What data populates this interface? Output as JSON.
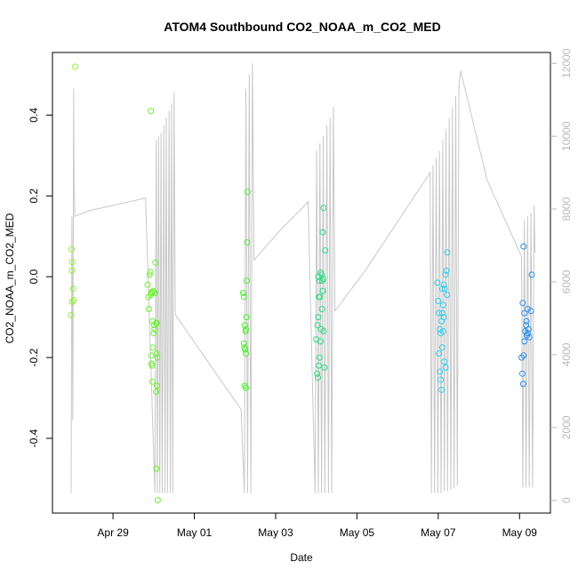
{
  "chart_data": {
    "type": "scatter",
    "title": "ATOM4 Southbound CO2_NOAA_m_CO2_MED",
    "xlabel": "Date",
    "ylabel": "CO2_NOAA_m_CO2_MED",
    "x_unit": "days since Apr 27 00:00",
    "xlim": [
      0.51,
      12.76
    ],
    "ylim": [
      -0.585,
      0.555
    ],
    "x_ticks": [
      {
        "value": 2,
        "label": "Apr 29"
      },
      {
        "value": 4,
        "label": "May 01"
      },
      {
        "value": 6,
        "label": "May 03"
      },
      {
        "value": 8,
        "label": "May 05"
      },
      {
        "value": 10,
        "label": "May 07"
      },
      {
        "value": 12,
        "label": "May 09"
      }
    ],
    "y_ticks": [
      {
        "value": -0.4,
        "label": "-0.4"
      },
      {
        "value": -0.2,
        "label": "-0.2"
      },
      {
        "value": 0.0,
        "label": "0.0"
      },
      {
        "value": 0.2,
        "label": "0.2"
      },
      {
        "value": 0.4,
        "label": "0.4"
      }
    ],
    "secondary_axis": {
      "label": "",
      "color": "#b8b8b8",
      "ylim": [
        -350,
        12300
      ],
      "ticks": [
        {
          "value": 0,
          "label": "0"
        },
        {
          "value": 2000,
          "label": "2000"
        },
        {
          "value": 4000,
          "label": "4000"
        },
        {
          "value": 6000,
          "label": "6000"
        },
        {
          "value": 8000,
          "label": "8000"
        },
        {
          "value": 10000,
          "label": "10000"
        },
        {
          "value": 12000,
          "label": "12000"
        }
      ]
    },
    "altitude_trace": {
      "name": "altitude",
      "color": "#c8c8c8",
      "points": [
        [
          0.97,
          200
        ],
        [
          0.99,
          7800
        ],
        [
          1.01,
          2200
        ],
        [
          1.03,
          11300
        ],
        [
          1.04,
          9000
        ],
        [
          1.06,
          7800
        ],
        [
          1.4,
          7950
        ],
        [
          2.8,
          8300
        ],
        [
          3.03,
          200
        ],
        [
          3.06,
          9900
        ],
        [
          3.09,
          200
        ],
        [
          3.12,
          10000
        ],
        [
          3.15,
          200
        ],
        [
          3.18,
          10100
        ],
        [
          3.21,
          200
        ],
        [
          3.25,
          10300
        ],
        [
          3.28,
          200
        ],
        [
          3.31,
          10500
        ],
        [
          3.34,
          200
        ],
        [
          3.38,
          10700
        ],
        [
          3.41,
          200
        ],
        [
          3.44,
          10900
        ],
        [
          3.47,
          200
        ],
        [
          3.5,
          11200
        ],
        [
          3.53,
          5100
        ],
        [
          4.4,
          3700
        ],
        [
          5.15,
          2500
        ],
        [
          5.23,
          200
        ],
        [
          5.27,
          11300
        ],
        [
          5.31,
          200
        ],
        [
          5.35,
          11700
        ],
        [
          5.39,
          200
        ],
        [
          5.43,
          12000
        ],
        [
          5.47,
          6600
        ],
        [
          6.1,
          7400
        ],
        [
          6.8,
          8200
        ],
        [
          6.97,
          200
        ],
        [
          7.01,
          9600
        ],
        [
          7.05,
          200
        ],
        [
          7.09,
          9800
        ],
        [
          7.13,
          200
        ],
        [
          7.17,
          10000
        ],
        [
          7.21,
          200
        ],
        [
          7.26,
          10300
        ],
        [
          7.3,
          200
        ],
        [
          7.34,
          10500
        ],
        [
          7.38,
          200
        ],
        [
          7.42,
          10800
        ],
        [
          7.46,
          5200
        ],
        [
          8.2,
          6300
        ],
        [
          9.8,
          9000
        ],
        [
          9.83,
          200
        ],
        [
          9.87,
          9200
        ],
        [
          9.91,
          200
        ],
        [
          9.95,
          9400
        ],
        [
          9.99,
          200
        ],
        [
          10.03,
          9600
        ],
        [
          10.07,
          200
        ],
        [
          10.11,
          9900
        ],
        [
          10.15,
          250
        ],
        [
          10.19,
          10200
        ],
        [
          10.23,
          250
        ],
        [
          10.27,
          10500
        ],
        [
          10.31,
          300
        ],
        [
          10.35,
          10800
        ],
        [
          10.39,
          350
        ],
        [
          10.43,
          11100
        ],
        [
          10.47,
          400
        ],
        [
          10.51,
          11400
        ],
        [
          10.55,
          11800
        ],
        [
          11.2,
          8800
        ],
        [
          12.05,
          6700
        ],
        [
          12.08,
          350
        ],
        [
          12.12,
          7700
        ],
        [
          12.16,
          350
        ],
        [
          12.2,
          7800
        ],
        [
          12.24,
          350
        ],
        [
          12.28,
          7900
        ],
        [
          12.32,
          350
        ],
        [
          12.36,
          8100
        ],
        [
          12.38,
          6800
        ]
      ]
    },
    "series": [
      {
        "name": "CO2_NOAA_m_CO2_MED",
        "points": [
          [
            0.97,
            -0.095,
            "#8ef22e"
          ],
          [
            0.98,
            0.068,
            "#8ef22e"
          ],
          [
            1.0,
            0.036,
            "#8ef22e"
          ],
          [
            0.99,
            0.015,
            "#8ef22e"
          ],
          [
            1.02,
            -0.03,
            "#8ef22e"
          ],
          [
            1.0,
            -0.062,
            "#8ef22e"
          ],
          [
            1.03,
            -0.058,
            "#8ef22e"
          ],
          [
            1.07,
            0.52,
            "#8ef22e"
          ],
          [
            2.85,
            -0.02,
            "#6af02c"
          ],
          [
            2.87,
            -0.05,
            "#6af02c"
          ],
          [
            2.88,
            -0.08,
            "#6af02c"
          ],
          [
            2.9,
            0.005,
            "#6af02c"
          ],
          [
            2.92,
            0.012,
            "#6af02c"
          ],
          [
            2.93,
            -0.045,
            "#6af02c"
          ],
          [
            2.95,
            -0.038,
            "#6af02c"
          ],
          [
            2.96,
            -0.04,
            "#6af02c"
          ],
          [
            2.97,
            -0.11,
            "#6af02c"
          ],
          [
            2.98,
            -0.175,
            "#6af02c"
          ],
          [
            2.99,
            -0.035,
            "#6af02c"
          ],
          [
            3.0,
            -0.14,
            "#6af02c"
          ],
          [
            3.01,
            -0.12,
            "#6af02c"
          ],
          [
            3.02,
            -0.13,
            "#6af02c"
          ],
          [
            3.03,
            -0.04,
            "#6af02c"
          ],
          [
            3.04,
            0.035,
            "#6af02c"
          ],
          [
            3.06,
            -0.115,
            "#6af02c"
          ],
          [
            3.08,
            -0.115,
            "#6af02c"
          ],
          [
            2.94,
            -0.195,
            "#6af02c"
          ],
          [
            2.95,
            -0.215,
            "#6af02c"
          ],
          [
            2.96,
            -0.22,
            "#6af02c"
          ],
          [
            2.97,
            -0.26,
            "#6af02c"
          ],
          [
            3.07,
            -0.19,
            "#6af02c"
          ],
          [
            3.09,
            -0.2,
            "#6af02c"
          ],
          [
            3.08,
            -0.27,
            "#6af02c"
          ],
          [
            3.06,
            -0.285,
            "#6af02c"
          ],
          [
            3.07,
            -0.475,
            "#6af02c"
          ],
          [
            3.1,
            -0.553,
            "#6af02c"
          ],
          [
            2.93,
            0.41,
            "#6af02c"
          ],
          [
            5.2,
            -0.04,
            "#4ded30"
          ],
          [
            5.22,
            -0.05,
            "#4ded30"
          ],
          [
            5.24,
            -0.12,
            "#4ded30"
          ],
          [
            5.26,
            -0.135,
            "#4ded30"
          ],
          [
            5.27,
            -0.13,
            "#4ded30"
          ],
          [
            5.28,
            -0.1,
            "#4ded30"
          ],
          [
            5.29,
            -0.01,
            "#4ded30"
          ],
          [
            5.22,
            -0.165,
            "#4ded30"
          ],
          [
            5.23,
            -0.175,
            "#4ded30"
          ],
          [
            5.25,
            -0.18,
            "#4ded30"
          ],
          [
            5.27,
            -0.19,
            "#4ded30"
          ],
          [
            5.24,
            -0.27,
            "#4ded30"
          ],
          [
            5.27,
            -0.275,
            "#4ded30"
          ],
          [
            5.3,
            0.085,
            "#4ded30"
          ],
          [
            5.31,
            0.21,
            "#4ded30"
          ],
          [
            7.0,
            -0.155,
            "#2bdb84"
          ],
          [
            7.02,
            -0.24,
            "#2bdb84"
          ],
          [
            7.04,
            -0.25,
            "#2bdb84"
          ],
          [
            7.06,
            -0.22,
            "#2bdb84"
          ],
          [
            7.08,
            -0.2,
            "#2bdb84"
          ],
          [
            7.1,
            -0.16,
            "#2bdb84"
          ],
          [
            7.03,
            -0.12,
            "#2bdb84"
          ],
          [
            7.05,
            -0.1,
            "#2bdb84"
          ],
          [
            7.07,
            -0.05,
            "#2bdb84"
          ],
          [
            7.09,
            -0.05,
            "#2bdb84"
          ],
          [
            7.12,
            -0.13,
            "#2bdb84"
          ],
          [
            7.14,
            -0.08,
            "#2bdb84"
          ],
          [
            7.16,
            -0.035,
            "#2bdb84"
          ],
          [
            7.18,
            -0.135,
            "#2bdb84"
          ],
          [
            7.05,
            0.0,
            "#2bdb84"
          ],
          [
            7.08,
            -0.01,
            "#2bdb84"
          ],
          [
            7.11,
            0.01,
            "#2bdb84"
          ],
          [
            7.13,
            0.005,
            "#2bdb84"
          ],
          [
            7.15,
            -0.01,
            "#2bdb84"
          ],
          [
            7.17,
            -0.005,
            "#2bdb84"
          ],
          [
            7.2,
            -0.225,
            "#2bdb84"
          ],
          [
            7.16,
            0.11,
            "#2bdb84"
          ],
          [
            7.18,
            0.17,
            "#2bdb84"
          ],
          [
            7.22,
            0.065,
            "#2bdb84"
          ],
          [
            9.98,
            -0.015,
            "#33ccee"
          ],
          [
            10.0,
            -0.06,
            "#33ccee"
          ],
          [
            10.02,
            -0.09,
            "#33ccee"
          ],
          [
            10.04,
            -0.13,
            "#33ccee"
          ],
          [
            10.06,
            -0.14,
            "#33ccee"
          ],
          [
            10.08,
            -0.11,
            "#33ccee"
          ],
          [
            10.1,
            -0.09,
            "#33ccee"
          ],
          [
            10.12,
            -0.07,
            "#33ccee"
          ],
          [
            10.14,
            -0.02,
            "#33ccee"
          ],
          [
            10.16,
            -0.03,
            "#33ccee"
          ],
          [
            10.18,
            0.005,
            "#33ccee"
          ],
          [
            10.2,
            0.015,
            "#33ccee"
          ],
          [
            10.22,
            -0.045,
            "#33ccee"
          ],
          [
            10.02,
            -0.19,
            "#33ccee"
          ],
          [
            10.04,
            -0.235,
            "#33ccee"
          ],
          [
            10.06,
            -0.255,
            "#33ccee"
          ],
          [
            10.08,
            -0.28,
            "#33ccee"
          ],
          [
            10.1,
            -0.175,
            "#33ccee"
          ],
          [
            10.12,
            -0.135,
            "#33ccee"
          ],
          [
            10.15,
            -0.21,
            "#33ccee"
          ],
          [
            10.18,
            -0.225,
            "#33ccee"
          ],
          [
            10.22,
            0.06,
            "#33ccee"
          ],
          [
            10.1,
            -0.03,
            "#33ccee"
          ],
          [
            10.14,
            -0.1,
            "#33ccee"
          ],
          [
            12.05,
            -0.2,
            "#2a8ee8"
          ],
          [
            12.07,
            -0.24,
            "#2a8ee8"
          ],
          [
            12.09,
            -0.265,
            "#2a8ee8"
          ],
          [
            12.1,
            -0.195,
            "#2a8ee8"
          ],
          [
            12.12,
            -0.16,
            "#2a8ee8"
          ],
          [
            12.14,
            -0.135,
            "#2a8ee8"
          ],
          [
            12.16,
            -0.12,
            "#2a8ee8"
          ],
          [
            12.18,
            -0.145,
            "#2a8ee8"
          ],
          [
            12.2,
            -0.14,
            "#2a8ee8"
          ],
          [
            12.22,
            -0.13,
            "#2a8ee8"
          ],
          [
            12.24,
            -0.15,
            "#2a8ee8"
          ],
          [
            12.08,
            -0.065,
            "#2a8ee8"
          ],
          [
            12.12,
            -0.09,
            "#2a8ee8"
          ],
          [
            12.2,
            -0.08,
            "#2a8ee8"
          ],
          [
            12.28,
            -0.085,
            "#2a8ee8"
          ],
          [
            12.1,
            0.075,
            "#2a8ee8"
          ],
          [
            12.3,
            0.005,
            "#2a8ee8"
          ],
          [
            12.17,
            -0.11,
            "#2a8ee8"
          ]
        ]
      }
    ]
  }
}
